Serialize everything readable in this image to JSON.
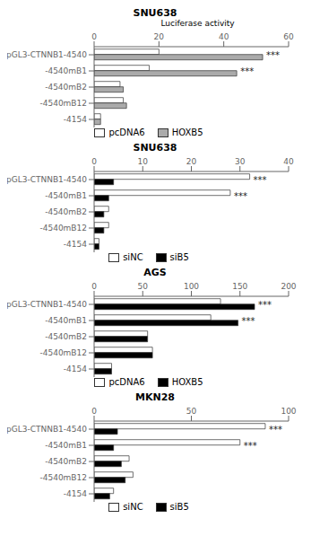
{
  "chart_data": [
    {
      "type": "bar",
      "orientation": "horizontal",
      "title": "SNU638",
      "x_label": "Luciferase activity",
      "categories": [
        "pGL3-CTNNB1-4540",
        "-4540mB1",
        "-4540mB2",
        "-4540mB12",
        "-4154"
      ],
      "series": [
        {
          "name": "pcDNA6",
          "color": "white",
          "values": [
            20,
            17,
            8,
            9,
            2
          ]
        },
        {
          "name": "HOXB5",
          "color": "#aaaaaa",
          "values": [
            52,
            44,
            9,
            10,
            2
          ]
        }
      ],
      "xlim": [
        0,
        60
      ],
      "xticks": [
        0,
        20,
        40,
        60
      ],
      "annotations": [
        {
          "category": "pGL3-CTNNB1-4540",
          "text": "***"
        },
        {
          "category": "-4540mB1",
          "text": "***"
        }
      ],
      "legend": "bottom",
      "grid": false
    },
    {
      "type": "bar",
      "orientation": "horizontal",
      "title": "SNU638",
      "categories": [
        "pGL3-CTNNB1-4540",
        "-4540mB1",
        "-4540mB2",
        "-4540mB12",
        "-4154"
      ],
      "series": [
        {
          "name": "siNC",
          "color": "white",
          "values": [
            32,
            28,
            3,
            3,
            1
          ]
        },
        {
          "name": "siB5",
          "color": "black",
          "values": [
            4,
            3,
            2,
            2,
            1
          ]
        }
      ],
      "xlim": [
        0,
        40
      ],
      "xticks": [
        0,
        10,
        20,
        30,
        40
      ],
      "annotations": [
        {
          "category": "pGL3-CTNNB1-4540",
          "text": "***"
        },
        {
          "category": "-4540mB1",
          "text": "***"
        }
      ],
      "legend": "bottom",
      "grid": false
    },
    {
      "type": "bar",
      "orientation": "horizontal",
      "title": "AGS",
      "categories": [
        "pGL3-CTNNB1-4540",
        "-4540mB1",
        "-4540mB2",
        "-4540mB12",
        "-4154"
      ],
      "series": [
        {
          "name": "pcDNA6",
          "color": "white",
          "values": [
            130,
            120,
            55,
            60,
            18
          ]
        },
        {
          "name": "HOXB5",
          "color": "black",
          "values": [
            165,
            148,
            55,
            60,
            18
          ]
        }
      ],
      "xlim": [
        0,
        200
      ],
      "xticks": [
        0,
        50,
        100,
        150,
        200
      ],
      "annotations": [
        {
          "category": "pGL3-CTNNB1-4540",
          "text": "***"
        },
        {
          "category": "-4540mB1",
          "text": "***"
        }
      ],
      "legend": "bottom",
      "grid": false
    },
    {
      "type": "bar",
      "orientation": "horizontal",
      "title": "MKN28",
      "categories": [
        "pGL3-CTNNB1-4540",
        "-4540mB1",
        "-4540mB2",
        "-4540mB12",
        "-4154"
      ],
      "series": [
        {
          "name": "siNC",
          "color": "white",
          "values": [
            88,
            75,
            18,
            20,
            10
          ]
        },
        {
          "name": "siB5",
          "color": "black",
          "values": [
            12,
            10,
            14,
            16,
            8
          ]
        }
      ],
      "xlim": [
        0,
        100
      ],
      "xticks": [
        0,
        50,
        100
      ],
      "annotations": [
        {
          "category": "pGL3-CTNNB1-4540",
          "text": "***"
        },
        {
          "category": "-4540mB1",
          "text": "***"
        }
      ],
      "legend": "bottom",
      "grid": false
    }
  ]
}
